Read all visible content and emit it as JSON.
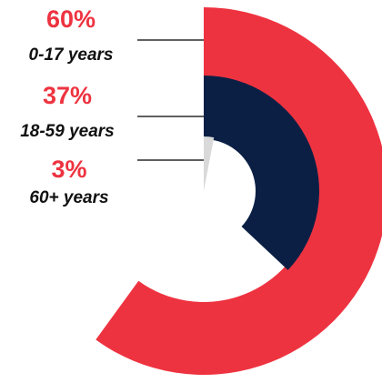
{
  "chart_data": {
    "type": "radial-bar",
    "unit": "%",
    "series": [
      {
        "label": "0-17 years",
        "percent_label": "60%",
        "value": 60
      },
      {
        "label": "18-59 years",
        "percent_label": "37%",
        "value": 37
      },
      {
        "label": "60+ years",
        "percent_label": "3%",
        "value": 3
      }
    ],
    "colors": [
      "#ee3340",
      "#0b1f45",
      "#d9d9d9"
    ],
    "label_color": "#ee3340"
  }
}
